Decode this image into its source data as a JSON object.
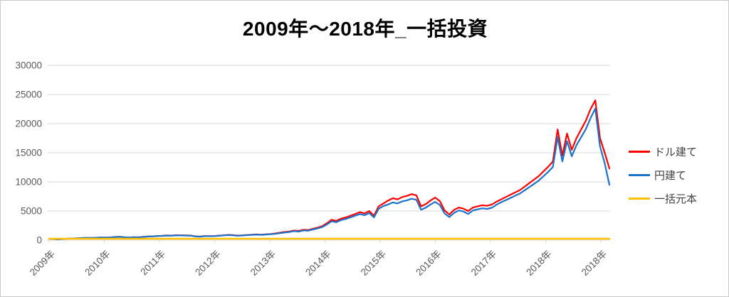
{
  "title": "2009年～2018年_一括投資",
  "colors": {
    "dollar": "#ff0000",
    "yen": "#1a73c8",
    "principal": "#ffc000",
    "gridline": "#d9d9d9",
    "axis_text": "#595959"
  },
  "legend": {
    "position": "right",
    "items": [
      {
        "key": "dollar",
        "label": "ドル建て",
        "color": "#ff0000"
      },
      {
        "key": "yen",
        "label": "円建て",
        "color": "#1a73c8"
      },
      {
        "key": "principal",
        "label": "一括元本",
        "color": "#ffc000"
      }
    ]
  },
  "chart_data": {
    "type": "line",
    "title": "2009年～2018年_一括投資",
    "xlabel": "",
    "ylabel": "",
    "ylim": [
      0,
      30000
    ],
    "y_ticks": [
      0,
      5000,
      10000,
      15000,
      20000,
      25000,
      30000
    ],
    "grid": "horizontal",
    "legend_position": "right",
    "x_tick_labels": [
      "2009年",
      "2010年",
      "2011年",
      "2012年",
      "2013年",
      "2014年",
      "2015年",
      "2016年",
      "2017年",
      "2018年",
      "2018年"
    ],
    "x_unit": "months from Jan 2009 (monthly samples)",
    "series": [
      {
        "key": "dollar",
        "name": "ドル建て",
        "color": "#ff0000",
        "values": [
          240,
          195,
          150,
          210,
          260,
          285,
          330,
          360,
          395,
          375,
          420,
          455,
          440,
          460,
          535,
          575,
          485,
          450,
          500,
          470,
          565,
          620,
          650,
          705,
          740,
          800,
          780,
          850,
          830,
          810,
          790,
          660,
          610,
          705,
          695,
          705,
          765,
          835,
          905,
          870,
          785,
          825,
          895,
          935,
          985,
          945,
          995,
          1060,
          1150,
          1280,
          1400,
          1480,
          1650,
          1580,
          1780,
          1730,
          1950,
          2150,
          2400,
          2900,
          3500,
          3300,
          3700,
          3900,
          4200,
          4500,
          4800,
          4600,
          5000,
          4200,
          5800,
          6300,
          6800,
          7200,
          7000,
          7400,
          7600,
          7900,
          7700,
          5800,
          6200,
          6800,
          7300,
          6700,
          5100,
          4400,
          5200,
          5600,
          5400,
          5000,
          5600,
          5800,
          6000,
          5900,
          6100,
          6600,
          7000,
          7400,
          7800,
          8200,
          8600,
          9200,
          9800,
          10400,
          11000,
          11800,
          12600,
          13500,
          19000,
          14500,
          18300,
          15500,
          17500,
          19000,
          20500,
          22500,
          24000,
          17500,
          15000,
          12300
        ]
      },
      {
        "key": "yen",
        "name": "円建て",
        "color": "#1a73c8",
        "values": [
          240,
          190,
          140,
          205,
          258,
          288,
          335,
          365,
          400,
          382,
          428,
          465,
          450,
          472,
          548,
          590,
          498,
          462,
          512,
          482,
          578,
          632,
          660,
          718,
          730,
          788,
          768,
          838,
          818,
          795,
          775,
          648,
          598,
          692,
          680,
          692,
          745,
          812,
          880,
          845,
          762,
          800,
          868,
          908,
          955,
          918,
          968,
          1030,
          1080,
          1200,
          1310,
          1385,
          1545,
          1480,
          1665,
          1620,
          1825,
          2010,
          2245,
          2700,
          3250,
          3070,
          3440,
          3630,
          3910,
          4190,
          4470,
          4280,
          4650,
          3910,
          5390,
          5860,
          6120,
          6480,
          6300,
          6660,
          6840,
          7110,
          6930,
          5220,
          5580,
          6120,
          6570,
          6030,
          4590,
          3960,
          4680,
          5100,
          4910,
          4500,
          5100,
          5280,
          5460,
          5370,
          5550,
          6070,
          6510,
          6880,
          7250,
          7630,
          8000,
          8560,
          9110,
          9670,
          10230,
          10970,
          11720,
          12560,
          17700,
          13500,
          17000,
          14400,
          16280,
          17670,
          19060,
          20930,
          22600,
          16100,
          13200,
          9500
        ]
      },
      {
        "key": "principal",
        "name": "一括元本",
        "color": "#ffc000",
        "values": [
          240,
          240
        ]
      }
    ]
  }
}
